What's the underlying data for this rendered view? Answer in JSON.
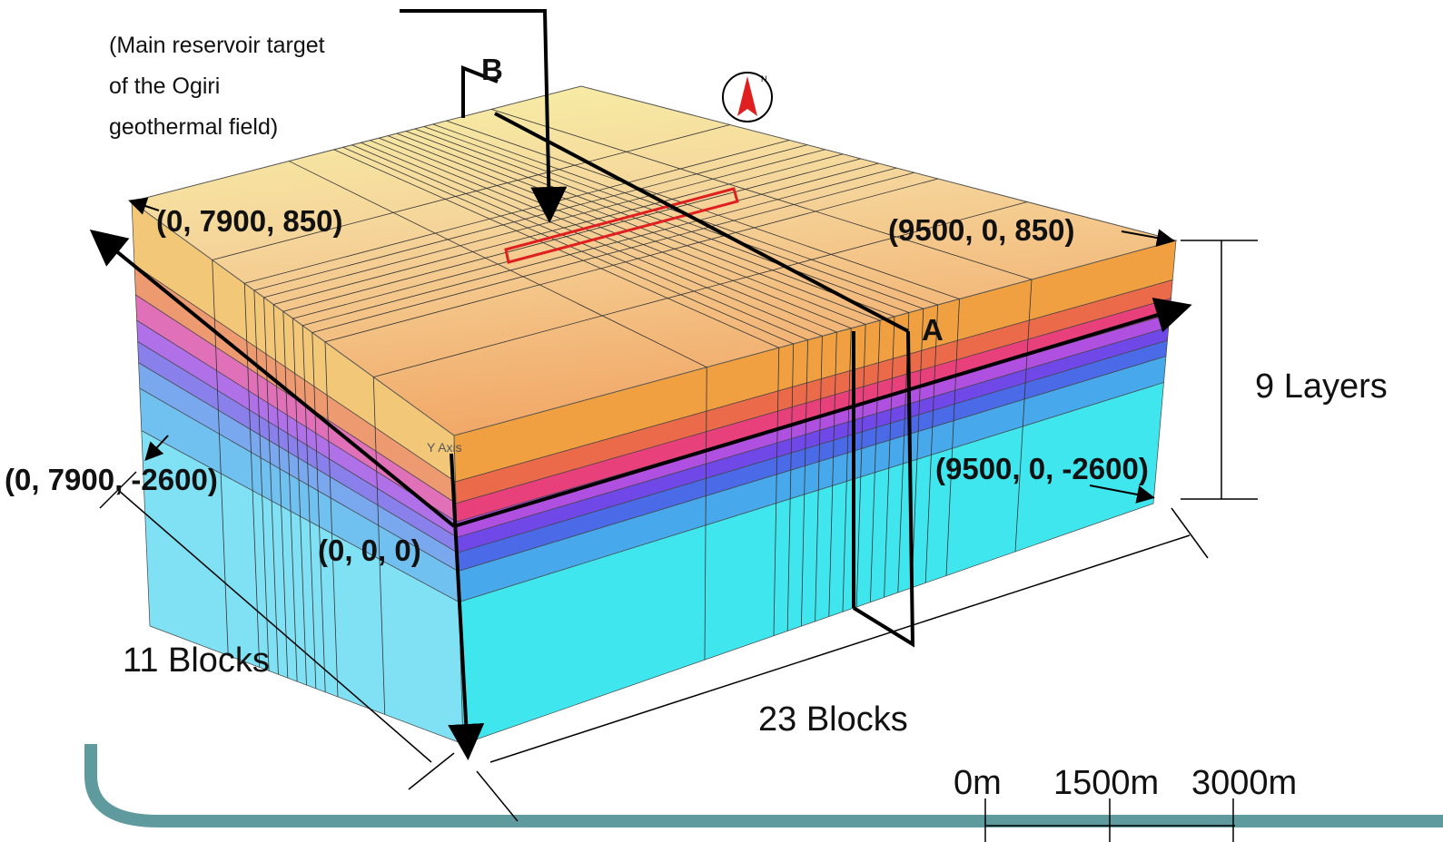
{
  "callout": {
    "lines": [
      "(Main reservoir target",
      "of the Ogiri",
      "geothermal field)"
    ]
  },
  "section_labels": {
    "b": "B",
    "a": "A"
  },
  "compass": "N",
  "axis_label": "Y Axis",
  "coordinates": {
    "top_left": "(0, 7900, 850)",
    "top_right": "(9500, 0, 850)",
    "bottom_left": "(0, 7900, -2600)",
    "bottom_right": "(9500, 0, -2600)",
    "origin": "(0, 0, 0)"
  },
  "dimensions": {
    "layers": "9 Layers",
    "y_blocks": "11 Blocks",
    "x_blocks": "23 Blocks"
  },
  "scale_bar": [
    "0m",
    "1500m",
    "3000m"
  ]
}
